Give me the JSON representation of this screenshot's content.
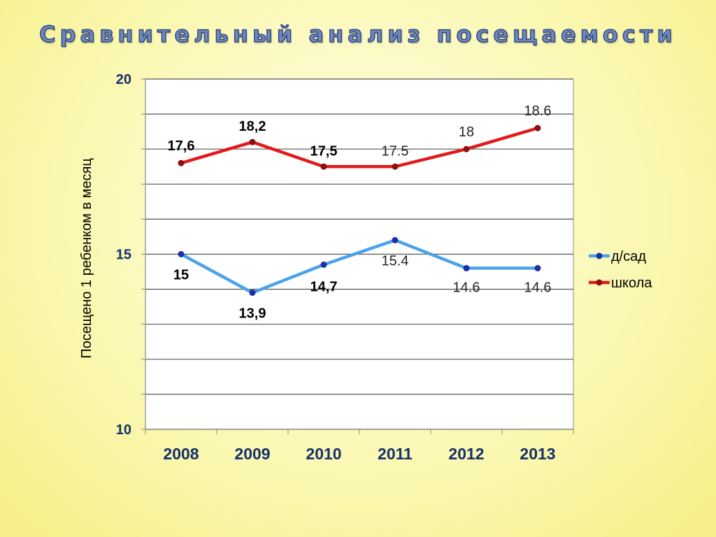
{
  "slide": {
    "title": "Сравнительный анализ посещаемости"
  },
  "chart_data": {
    "type": "line",
    "title": "Сравнительный анализ посещаемости",
    "xlabel": "",
    "ylabel": "Посещено 1 ребенком в месяц",
    "categories": [
      "2008",
      "2009",
      "2010",
      "2011",
      "2012",
      "2013"
    ],
    "ylim": [
      10,
      20
    ],
    "yticks": [
      10,
      15,
      20
    ],
    "grid": true,
    "legend_position": "right",
    "series": [
      {
        "name": "д/сад",
        "color": "#4aa3ea",
        "marker_color": "#1c2fa8",
        "values": [
          15,
          13.9,
          14.7,
          15.4,
          14.6,
          14.6
        ],
        "labels": [
          "15",
          "13,9",
          "14,7",
          "15.4",
          "14.6",
          "14.6"
        ],
        "label_bold": [
          true,
          true,
          true,
          false,
          false,
          false
        ]
      },
      {
        "name": "школа",
        "color": "#e31a1c",
        "marker_color": "#8b1010",
        "values": [
          17.6,
          18.2,
          17.5,
          17.5,
          18,
          18.6
        ],
        "labels": [
          "17,6",
          "18,2",
          "17,5",
          "17.5",
          "18",
          "18.6"
        ],
        "label_bold": [
          true,
          true,
          true,
          false,
          false,
          false
        ]
      }
    ]
  }
}
